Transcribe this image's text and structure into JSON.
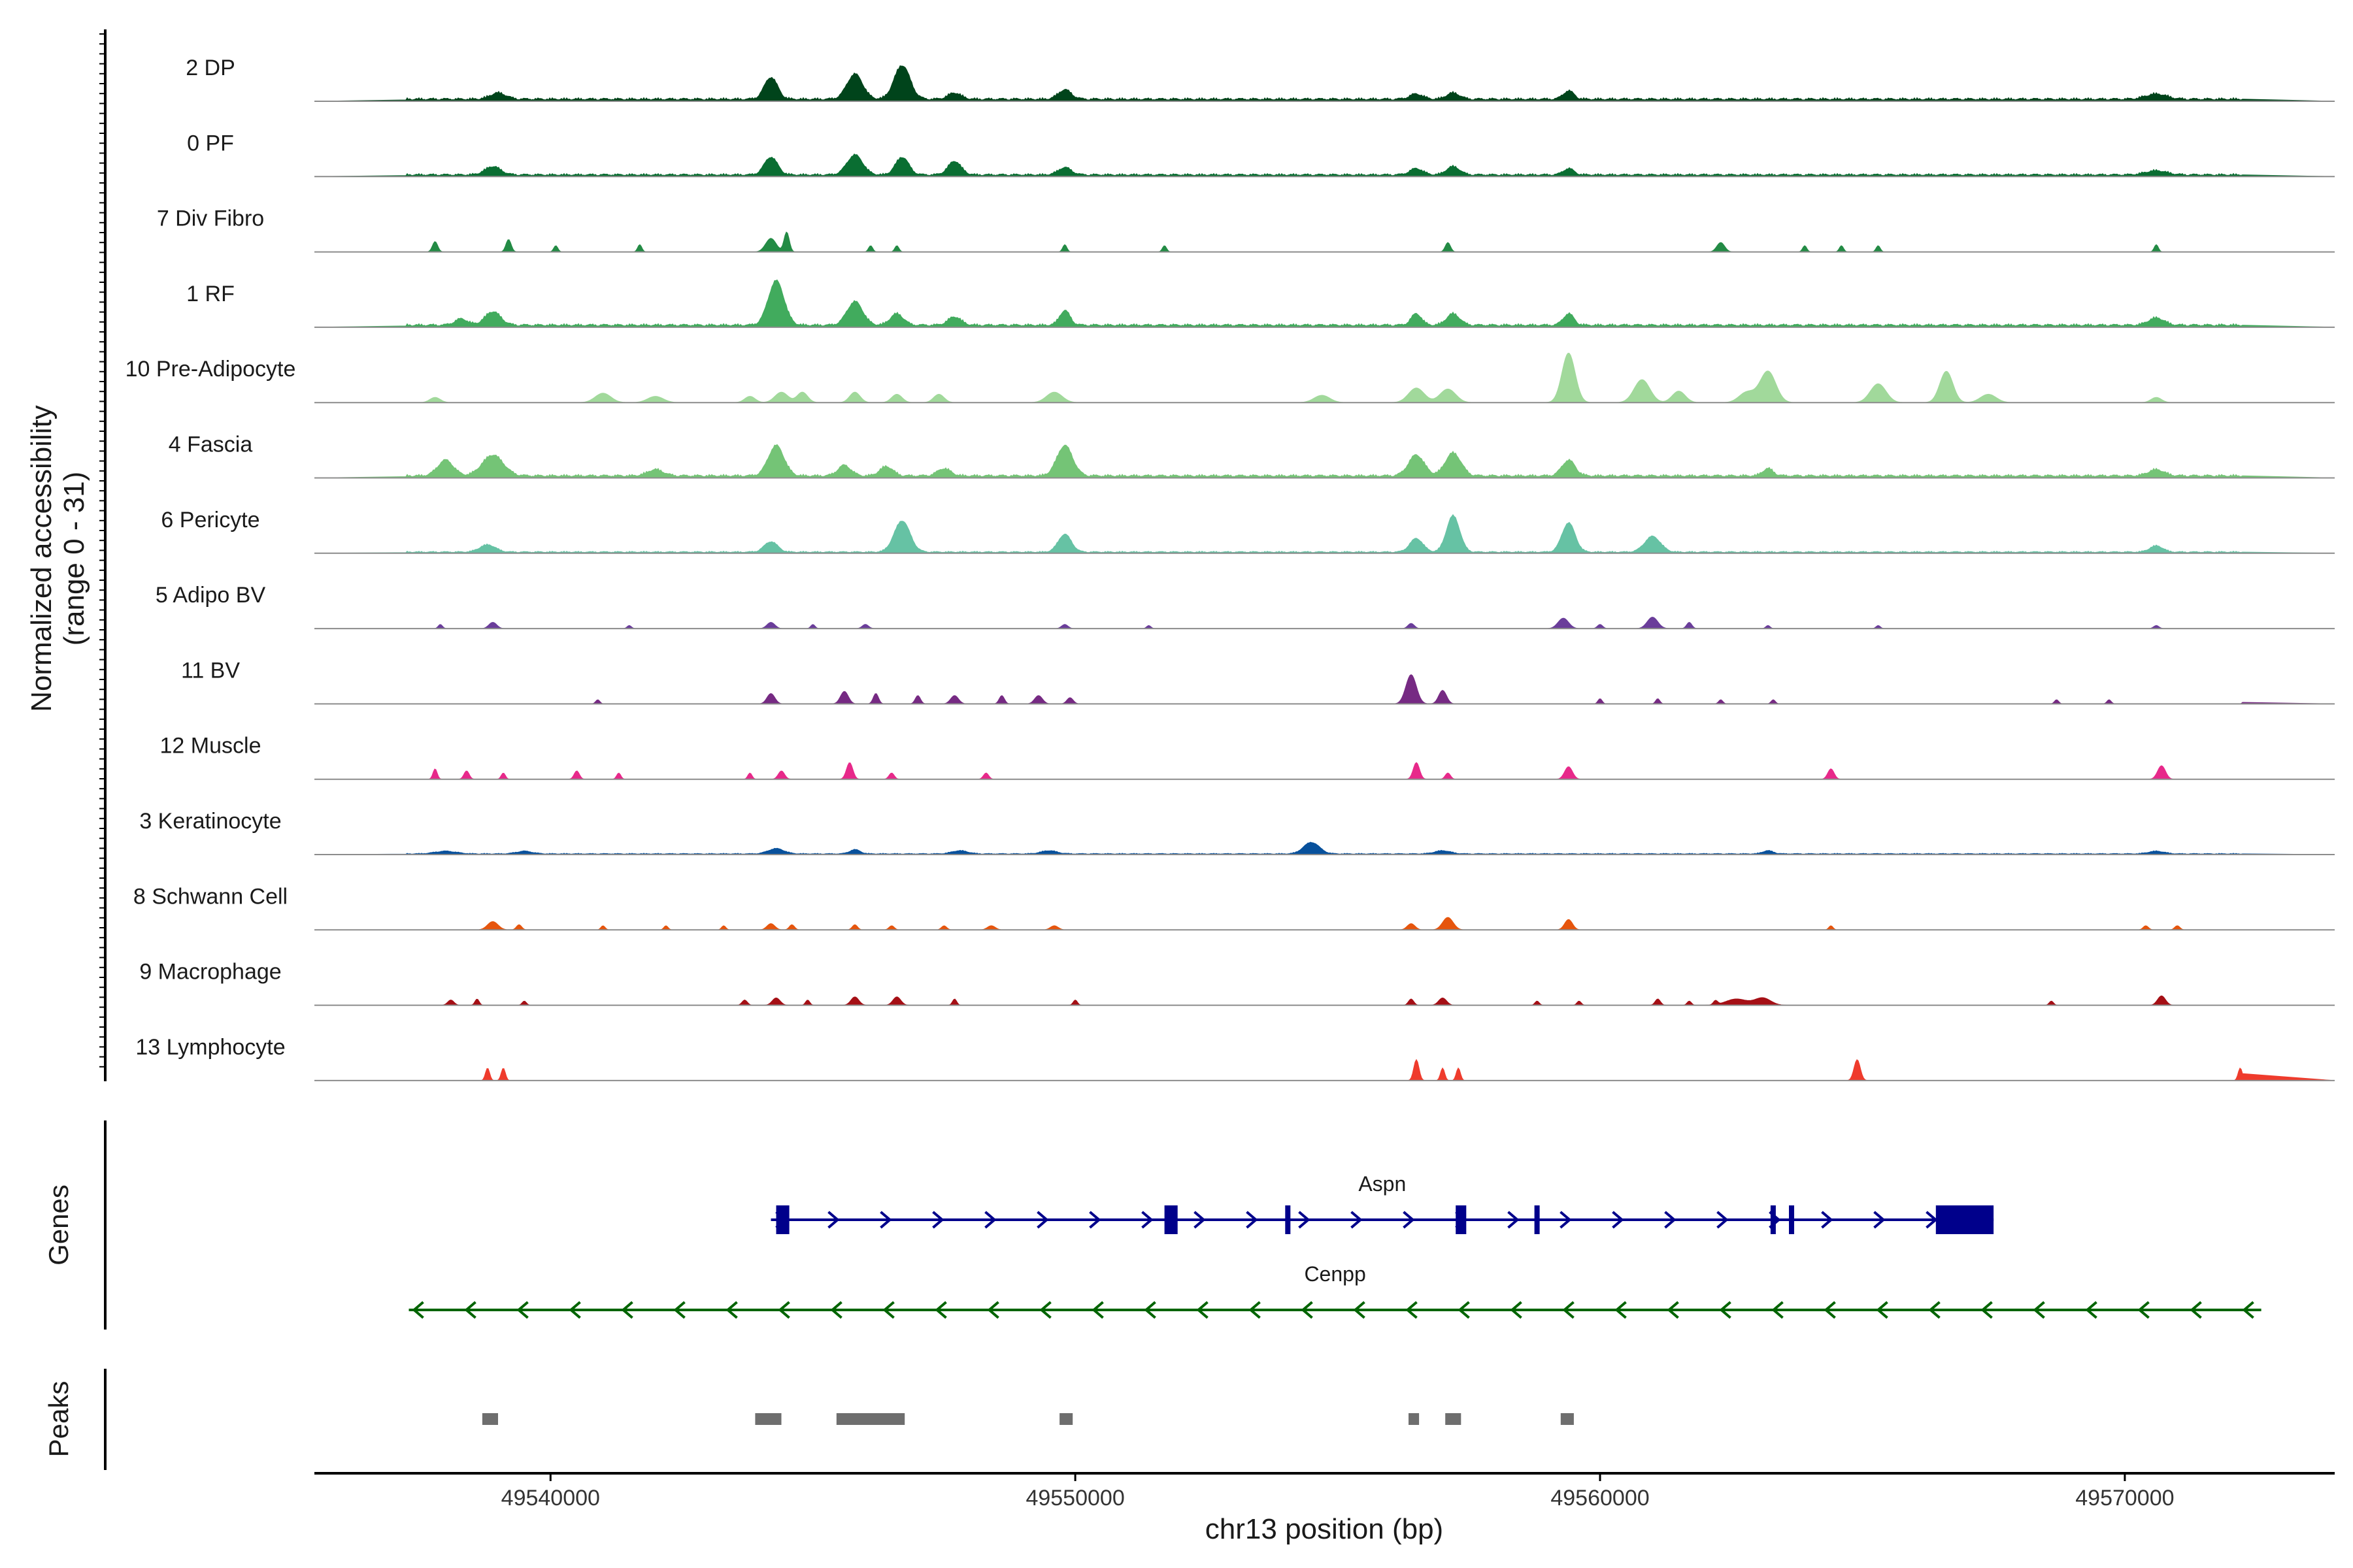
{
  "chart_data": {
    "type": "genome-browser",
    "chromosome": "chr13",
    "xlim": [
      49535500,
      49574000
    ],
    "xlabel": "chr13 position (bp)",
    "xticks": [
      49540000,
      49550000,
      49560000,
      49570000
    ],
    "xtick_labels": [
      "49540000",
      "49550000",
      "49560000",
      "49570000"
    ],
    "ylabel": "Normalized accessibility",
    "ylabel_range": "(range 0 - 31)",
    "ylim": [
      0,
      31
    ],
    "genes_label": "Genes",
    "peaks_label": "Peaks",
    "tracks": [
      {
        "name": "2 DP",
        "color": "#00441b",
        "base": 0.7,
        "peaks": [
          [
            49539000,
            300,
            1.2
          ],
          [
            49544200,
            250,
            4.2
          ],
          [
            49545800,
            300,
            4.8
          ],
          [
            49546700,
            300,
            6.5
          ],
          [
            49547700,
            250,
            1.2
          ],
          [
            49549800,
            250,
            1.8
          ],
          [
            49556500,
            250,
            1.0
          ],
          [
            49557200,
            250,
            1.2
          ],
          [
            49559400,
            200,
            1.6
          ],
          [
            49570600,
            400,
            1.0
          ]
        ]
      },
      {
        "name": "0 PF",
        "color": "#0a6e32",
        "base": 0.6,
        "peaks": [
          [
            49538900,
            300,
            1.6
          ],
          [
            49544200,
            250,
            3.4
          ],
          [
            49545800,
            300,
            3.8
          ],
          [
            49546700,
            250,
            3.4
          ],
          [
            49547700,
            250,
            2.6
          ],
          [
            49549800,
            250,
            1.4
          ],
          [
            49556500,
            250,
            1.2
          ],
          [
            49557200,
            250,
            1.6
          ],
          [
            49559400,
            200,
            1.2
          ],
          [
            49570600,
            400,
            0.8
          ]
        ]
      },
      {
        "name": "7 Div Fibro",
        "color": "#238b45",
        "base": 0.0,
        "peaks": [
          [
            49537800,
            100,
            2.0
          ],
          [
            49539200,
            100,
            2.4
          ],
          [
            49540100,
            80,
            1.2
          ],
          [
            49541700,
            80,
            1.4
          ],
          [
            49544200,
            200,
            2.6
          ],
          [
            49544500,
            100,
            3.8
          ],
          [
            49546100,
            80,
            1.2
          ],
          [
            49546600,
            80,
            1.2
          ],
          [
            49549800,
            80,
            1.4
          ],
          [
            49551700,
            80,
            1.2
          ],
          [
            49557100,
            100,
            1.8
          ],
          [
            49562300,
            150,
            1.8
          ],
          [
            49563900,
            80,
            1.2
          ],
          [
            49564600,
            80,
            1.2
          ],
          [
            49565300,
            80,
            1.2
          ],
          [
            49570600,
            80,
            1.4
          ]
        ]
      },
      {
        "name": "1 RF",
        "color": "#41ab5d",
        "base": 0.7,
        "peaks": [
          [
            49538300,
            250,
            1.2
          ],
          [
            49538900,
            300,
            2.6
          ],
          [
            49544300,
            300,
            8.5
          ],
          [
            49545800,
            300,
            4.5
          ],
          [
            49546600,
            250,
            2.2
          ],
          [
            49547700,
            250,
            1.6
          ],
          [
            49549800,
            200,
            2.8
          ],
          [
            49556500,
            200,
            2.2
          ],
          [
            49557200,
            250,
            2.2
          ],
          [
            49559400,
            200,
            2.2
          ],
          [
            49570600,
            300,
            1.4
          ]
        ]
      },
      {
        "name": "10 Pre-Adipocyte",
        "color": "#a1d99b",
        "base": 0.0,
        "peaks": [
          [
            49537800,
            200,
            1.0
          ],
          [
            49541000,
            300,
            1.8
          ],
          [
            49542000,
            300,
            1.2
          ],
          [
            49543800,
            200,
            1.2
          ],
          [
            49544400,
            250,
            2.0
          ],
          [
            49544800,
            200,
            2.0
          ],
          [
            49545800,
            200,
            2.0
          ],
          [
            49546600,
            200,
            1.6
          ],
          [
            49547400,
            200,
            1.6
          ],
          [
            49549600,
            300,
            2.0
          ],
          [
            49554700,
            300,
            1.4
          ],
          [
            49556500,
            300,
            2.8
          ],
          [
            49557100,
            300,
            2.6
          ],
          [
            49559400,
            250,
            9.5
          ],
          [
            49560800,
            300,
            4.4
          ],
          [
            49561500,
            250,
            2.2
          ],
          [
            49562800,
            300,
            2.0
          ],
          [
            49563200,
            300,
            6.0
          ],
          [
            49565300,
            300,
            3.6
          ],
          [
            49566600,
            250,
            6.0
          ],
          [
            49567400,
            300,
            1.6
          ],
          [
            49570600,
            200,
            1.0
          ]
        ]
      },
      {
        "name": "4 Fascia",
        "color": "#74c476",
        "base": 0.7,
        "peaks": [
          [
            49538000,
            300,
            3.0
          ],
          [
            49538900,
            400,
            4.0
          ],
          [
            49542000,
            300,
            1.2
          ],
          [
            49544300,
            300,
            5.8
          ],
          [
            49545600,
            250,
            2.0
          ],
          [
            49546400,
            250,
            1.8
          ],
          [
            49547500,
            250,
            1.4
          ],
          [
            49549800,
            300,
            5.8
          ],
          [
            49556500,
            300,
            4.0
          ],
          [
            49557200,
            300,
            4.4
          ],
          [
            49559400,
            250,
            3.0
          ],
          [
            49563200,
            200,
            1.4
          ],
          [
            49570600,
            300,
            1.2
          ]
        ]
      },
      {
        "name": "6 Pericyte",
        "color": "#66c2a4",
        "base": 0.4,
        "peaks": [
          [
            49538800,
            300,
            1.4
          ],
          [
            49544200,
            250,
            2.0
          ],
          [
            49546700,
            300,
            6.0
          ],
          [
            49549800,
            250,
            3.4
          ],
          [
            49556500,
            250,
            2.6
          ],
          [
            49557200,
            250,
            7.0
          ],
          [
            49559400,
            250,
            5.6
          ],
          [
            49561000,
            300,
            3.0
          ],
          [
            49570600,
            250,
            1.2
          ]
        ]
      },
      {
        "name": "5 Adipo BV",
        "color": "#6a3d9a",
        "base": 0.0,
        "peaks": [
          [
            49537900,
            80,
            0.8
          ],
          [
            49538900,
            150,
            1.2
          ],
          [
            49541500,
            80,
            0.6
          ],
          [
            49544200,
            150,
            1.2
          ],
          [
            49545000,
            80,
            0.8
          ],
          [
            49546000,
            120,
            0.8
          ],
          [
            49549800,
            120,
            0.8
          ],
          [
            49551400,
            80,
            0.6
          ],
          [
            49556400,
            120,
            1.0
          ],
          [
            49559300,
            200,
            2.0
          ],
          [
            49560000,
            100,
            0.8
          ],
          [
            49561000,
            200,
            2.2
          ],
          [
            49561700,
            100,
            1.2
          ],
          [
            49563200,
            80,
            0.6
          ],
          [
            49565300,
            80,
            0.6
          ],
          [
            49570600,
            100,
            0.6
          ]
        ]
      },
      {
        "name": "11 BV",
        "color": "#762a83",
        "base": 0.0,
        "peaks": [
          [
            49540900,
            80,
            0.8
          ],
          [
            49544200,
            150,
            2.0
          ],
          [
            49545600,
            150,
            2.4
          ],
          [
            49546200,
            100,
            2.0
          ],
          [
            49547000,
            100,
            1.6
          ],
          [
            49547700,
            150,
            1.6
          ],
          [
            49548600,
            100,
            1.6
          ],
          [
            49549300,
            150,
            1.6
          ],
          [
            49549900,
            120,
            1.2
          ],
          [
            49556400,
            200,
            5.6
          ],
          [
            49557000,
            150,
            2.6
          ],
          [
            49560000,
            80,
            1.0
          ],
          [
            49561100,
            80,
            1.0
          ],
          [
            49562300,
            80,
            0.8
          ],
          [
            49563300,
            80,
            0.8
          ],
          [
            49568700,
            80,
            0.8
          ],
          [
            49569700,
            80,
            0.8
          ],
          [
            49572300,
            80,
            0.8
          ]
        ]
      },
      {
        "name": "12 Muscle",
        "color": "#e7298a",
        "base": 0.0,
        "peaks": [
          [
            49537800,
            80,
            2.0
          ],
          [
            49538400,
            100,
            1.6
          ],
          [
            49539100,
            80,
            1.2
          ],
          [
            49540500,
            100,
            1.6
          ],
          [
            49541300,
            80,
            1.2
          ],
          [
            49543800,
            80,
            1.2
          ],
          [
            49544400,
            120,
            1.6
          ],
          [
            49545700,
            120,
            3.2
          ],
          [
            49546500,
            100,
            1.2
          ],
          [
            49548300,
            100,
            1.2
          ],
          [
            49556500,
            120,
            3.2
          ],
          [
            49557100,
            100,
            1.2
          ],
          [
            49559400,
            150,
            2.4
          ],
          [
            49564400,
            120,
            2.0
          ],
          [
            49570700,
            150,
            2.6
          ]
        ]
      },
      {
        "name": "3 Keratinocyte",
        "color": "#08519c",
        "base": 0.25,
        "peaks": [
          [
            49538000,
            400,
            0.5
          ],
          [
            49539500,
            300,
            0.5
          ],
          [
            49544300,
            300,
            1.0
          ],
          [
            49545800,
            200,
            0.8
          ],
          [
            49547800,
            300,
            0.6
          ],
          [
            49549500,
            300,
            0.6
          ],
          [
            49554500,
            300,
            2.2
          ],
          [
            49557000,
            300,
            0.6
          ],
          [
            49563200,
            200,
            0.6
          ],
          [
            49570600,
            300,
            0.5
          ]
        ]
      },
      {
        "name": "8 Schwann Cell",
        "color": "#e6550d",
        "base": 0.0,
        "peaks": [
          [
            49538900,
            200,
            1.6
          ],
          [
            49539400,
            100,
            1.0
          ],
          [
            49541000,
            80,
            0.8
          ],
          [
            49542200,
            80,
            0.8
          ],
          [
            49543300,
            80,
            0.8
          ],
          [
            49544200,
            150,
            1.2
          ],
          [
            49544600,
            100,
            1.0
          ],
          [
            49545800,
            100,
            1.0
          ],
          [
            49546500,
            100,
            0.8
          ],
          [
            49547500,
            100,
            0.8
          ],
          [
            49548400,
            150,
            0.8
          ],
          [
            49549600,
            150,
            0.8
          ],
          [
            49556400,
            150,
            1.2
          ],
          [
            49557100,
            200,
            2.4
          ],
          [
            49559400,
            150,
            2.0
          ],
          [
            49564400,
            80,
            0.8
          ],
          [
            49570400,
            100,
            0.8
          ],
          [
            49571000,
            100,
            0.8
          ]
        ]
      },
      {
        "name": "9 Macrophage",
        "color": "#a50f15",
        "base": 0.0,
        "peaks": [
          [
            49538100,
            120,
            1.0
          ],
          [
            49538600,
            80,
            1.2
          ],
          [
            49539500,
            80,
            0.8
          ],
          [
            49543700,
            100,
            1.0
          ],
          [
            49544300,
            150,
            1.4
          ],
          [
            49544900,
            80,
            1.0
          ],
          [
            49545800,
            150,
            1.6
          ],
          [
            49546600,
            150,
            1.6
          ],
          [
            49547700,
            80,
            1.2
          ],
          [
            49550000,
            80,
            1.0
          ],
          [
            49556400,
            100,
            1.2
          ],
          [
            49557000,
            150,
            1.4
          ],
          [
            49558800,
            80,
            0.8
          ],
          [
            49559600,
            80,
            0.8
          ],
          [
            49561100,
            100,
            1.2
          ],
          [
            49561700,
            80,
            0.8
          ],
          [
            49562200,
            80,
            0.8
          ],
          [
            49562600,
            400,
            1.2
          ],
          [
            49563100,
            300,
            1.4
          ],
          [
            49568600,
            80,
            0.8
          ],
          [
            49570700,
            150,
            1.8
          ]
        ]
      },
      {
        "name": "13 Lymphocyte",
        "color": "#ef3b2c",
        "base": 0.0,
        "peaks": [
          [
            49538800,
            80,
            2.4
          ],
          [
            49539100,
            80,
            2.4
          ],
          [
            49556500,
            100,
            4.0
          ],
          [
            49557000,
            80,
            2.4
          ],
          [
            49557300,
            80,
            2.4
          ],
          [
            49564900,
            120,
            4.0
          ],
          [
            49572200,
            80,
            2.4
          ],
          [
            49572600,
            80,
            2.4
          ]
        ]
      }
    ],
    "genes": [
      {
        "name": "Aspn",
        "strand": "+",
        "color": "#00008b",
        "start": 49544200,
        "end": 49567500,
        "exons": [
          [
            49544300,
            49544550
          ],
          [
            49551700,
            49551950
          ],
          [
            49554000,
            49554100
          ],
          [
            49557250,
            49557450
          ],
          [
            49558750,
            49558850
          ],
          [
            49563250,
            49563350
          ],
          [
            49563600,
            49563700
          ],
          [
            49566400,
            49567500
          ]
        ]
      },
      {
        "name": "Cenpp",
        "strand": "-",
        "color": "#006400",
        "start": 49537300,
        "end": 49572600,
        "exons": []
      }
    ],
    "peak_regions": [
      [
        49538700,
        49539000
      ],
      [
        49543900,
        49544400
      ],
      [
        49545450,
        49546750
      ],
      [
        49549700,
        49549950
      ],
      [
        49556350,
        49556550
      ],
      [
        49557050,
        49557350
      ],
      [
        49559250,
        49559500
      ]
    ]
  }
}
